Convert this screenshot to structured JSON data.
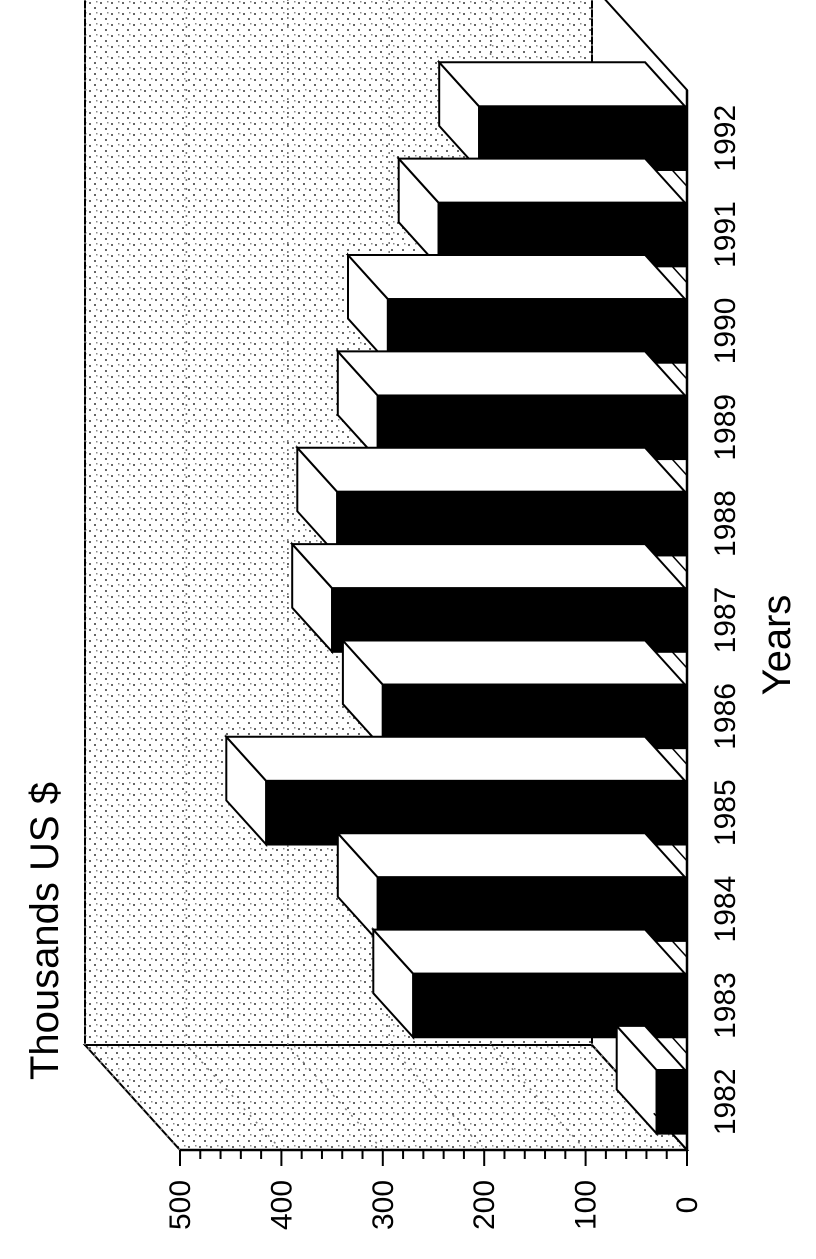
{
  "chart_data": {
    "type": "bar",
    "orientation": "rotated 90 degrees clockwise (3D bar chart)",
    "style": "3d",
    "title": "",
    "xlabel": "Years",
    "ylabel": "Thousands US $",
    "categories": [
      "1982",
      "1983",
      "1984",
      "1985",
      "1986",
      "1987",
      "1988",
      "1989",
      "1990",
      "1991",
      "1992"
    ],
    "values": [
      30,
      270,
      305,
      415,
      300,
      350,
      345,
      305,
      295,
      245,
      205
    ],
    "ylim": [
      0,
      500
    ],
    "y_ticks": [
      "0",
      "100",
      "200",
      "300",
      "400",
      "500"
    ],
    "grid": true,
    "legend": "none",
    "colors": {
      "bar_front": "#000000",
      "bar_top_side": "#ffffff",
      "wall_stipple": "#555555",
      "outline": "#000000"
    }
  }
}
